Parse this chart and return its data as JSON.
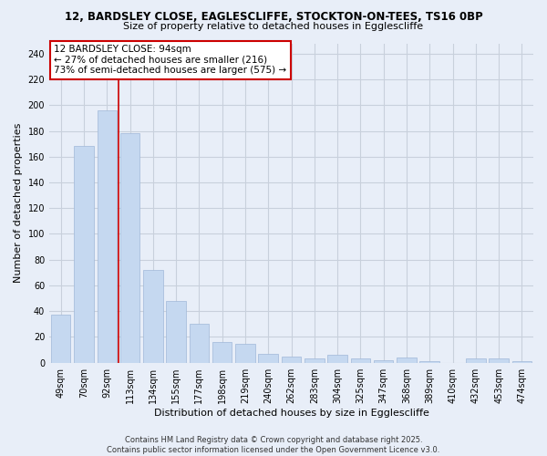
{
  "title1": "12, BARDSLEY CLOSE, EAGLESCLIFFE, STOCKTON-ON-TEES, TS16 0BP",
  "title2": "Size of property relative to detached houses in Egglescliffe",
  "xlabel": "Distribution of detached houses by size in Egglescliffe",
  "ylabel": "Number of detached properties",
  "bar_labels": [
    "49sqm",
    "70sqm",
    "92sqm",
    "113sqm",
    "134sqm",
    "155sqm",
    "177sqm",
    "198sqm",
    "219sqm",
    "240sqm",
    "262sqm",
    "283sqm",
    "304sqm",
    "325sqm",
    "347sqm",
    "368sqm",
    "389sqm",
    "410sqm",
    "432sqm",
    "453sqm",
    "474sqm"
  ],
  "bar_values": [
    37,
    168,
    196,
    178,
    72,
    48,
    30,
    16,
    15,
    7,
    5,
    3,
    6,
    3,
    2,
    4,
    1,
    0,
    3,
    3,
    1
  ],
  "bar_color": "#c5d8f0",
  "bar_edge_color": "#a0b8d8",
  "vline_color": "#cc0000",
  "vline_x": 2.5,
  "annotation_title": "12 BARDSLEY CLOSE: 94sqm",
  "annotation_line1": "← 27% of detached houses are smaller (216)",
  "annotation_line2": "73% of semi-detached houses are larger (575) →",
  "annotation_box_facecolor": "#ffffff",
  "annotation_box_edgecolor": "#cc0000",
  "ylim": [
    0,
    248
  ],
  "yticks": [
    0,
    20,
    40,
    60,
    80,
    100,
    120,
    140,
    160,
    180,
    200,
    220,
    240
  ],
  "footer1": "Contains HM Land Registry data © Crown copyright and database right 2025.",
  "footer2": "Contains public sector information licensed under the Open Government Licence v3.0.",
  "bg_color": "#e8eef8",
  "grid_color": "#c8d0dc",
  "title_fontsize": 8.5,
  "subtitle_fontsize": 8,
  "axis_label_fontsize": 8,
  "tick_fontsize": 7,
  "annotation_fontsize": 7.5,
  "footer_fontsize": 6
}
